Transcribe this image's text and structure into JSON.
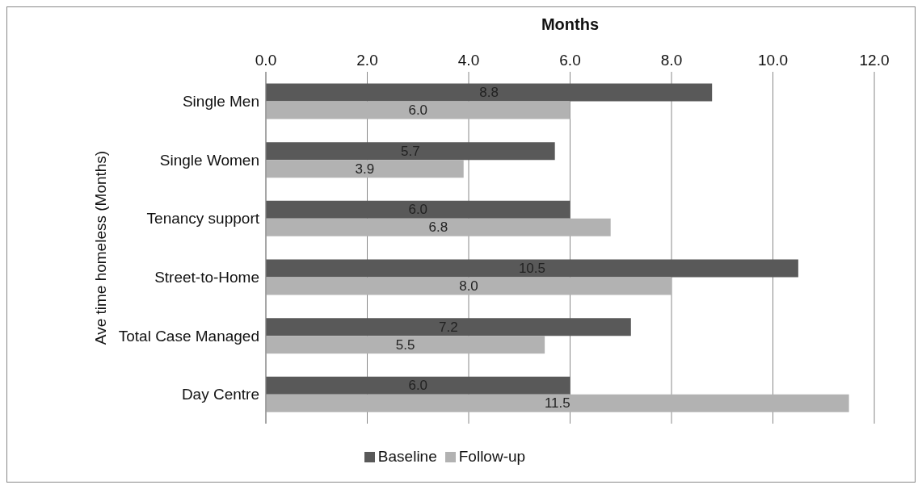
{
  "chart_data": {
    "type": "bar",
    "orientation": "horizontal",
    "xlabel": "Months",
    "ylabel": "Ave time homeless (Months)",
    "categories": [
      "Single Men",
      "Single Women",
      "Tenancy support",
      "Street-to-Home",
      "Total Case Managed",
      "Day Centre"
    ],
    "series": [
      {
        "name": "Baseline",
        "color": "#595959",
        "values": [
          8.8,
          5.7,
          6.0,
          10.5,
          7.2,
          6.0
        ],
        "value_labels": [
          "8.8",
          "5.7",
          "6.0",
          "10.5",
          "7.2",
          "6.0"
        ]
      },
      {
        "name": "Follow-up",
        "color": "#b2b2b2",
        "values": [
          6.0,
          3.9,
          6.8,
          8.0,
          5.5,
          11.5
        ],
        "value_labels": [
          "6.0",
          "3.9",
          "6.8",
          "8.0",
          "5.5",
          "11.5"
        ]
      }
    ],
    "xlim": [
      0,
      12
    ],
    "xticks": [
      {
        "value": 0,
        "label": "0.0"
      },
      {
        "value": 2,
        "label": "2.0"
      },
      {
        "value": 4,
        "label": "4.0"
      },
      {
        "value": 6,
        "label": "6.0"
      },
      {
        "value": 8,
        "label": "8.0"
      },
      {
        "value": 10,
        "label": "10.0"
      },
      {
        "value": 12,
        "label": "12.0"
      }
    ],
    "grid": "x",
    "legend": "bottom"
  }
}
